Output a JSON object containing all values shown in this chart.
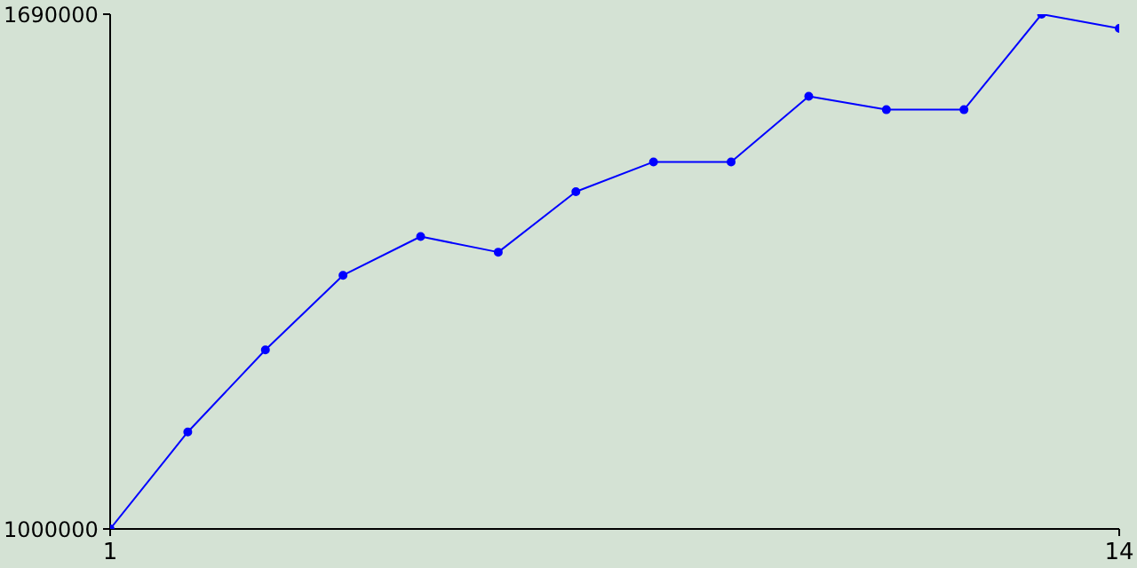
{
  "chart_data": {
    "type": "line",
    "x": [
      1,
      2,
      3,
      4,
      5,
      6,
      7,
      8,
      9,
      10,
      11,
      12,
      13,
      14
    ],
    "series": [
      {
        "color": "#0000ff",
        "values": [
          1000000,
          1130000,
          1240000,
          1340000,
          1392000,
          1371000,
          1452000,
          1492000,
          1492000,
          1580000,
          1562000,
          1562000,
          1690000,
          1671000
        ]
      }
    ],
    "xlim": [
      1,
      14
    ],
    "xticks": [
      1,
      14
    ],
    "ylim": [
      1000000,
      1690000
    ],
    "yticks": [
      1000000,
      1690000
    ],
    "marker": "circle",
    "grid": false,
    "legend": false
  }
}
